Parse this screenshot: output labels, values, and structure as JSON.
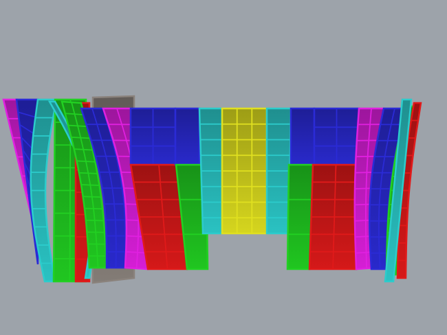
{
  "viewport": {
    "background": "#9da3aa",
    "panel_colors": {
      "blue": "#2b2bd6",
      "red": "#e01a1a",
      "green": "#22d022",
      "magenta": "#e020e0",
      "cyan": "#2ccccc",
      "yellow": "#e0e020",
      "gray": "#8a827c"
    }
  }
}
